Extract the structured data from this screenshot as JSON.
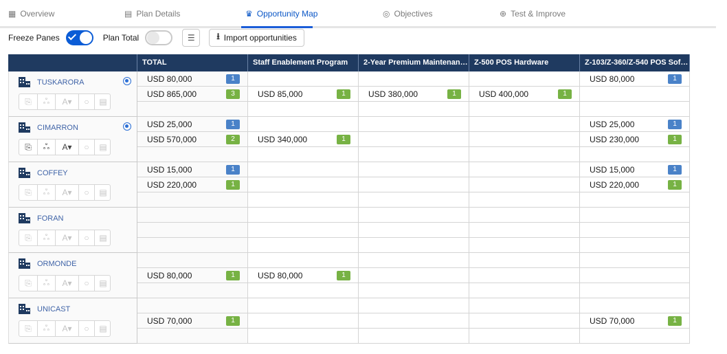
{
  "tabs": [
    {
      "label": "Overview",
      "icon": "grid-icon",
      "active": false
    },
    {
      "label": "Plan Details",
      "icon": "clipboard-icon",
      "active": false
    },
    {
      "label": "Opportunity Map",
      "icon": "crown-icon",
      "active": true
    },
    {
      "label": "Objectives",
      "icon": "target-icon",
      "active": false
    },
    {
      "label": "Test & Improve",
      "icon": "refresh-icon",
      "active": false
    }
  ],
  "toolbar": {
    "freeze_panes_label": "Freeze Panes",
    "freeze_panes_on": true,
    "plan_total_label": "Plan Total",
    "plan_total_on": false,
    "import_label": "Import opportunities"
  },
  "columns": [
    "TOTAL",
    "Staff Enablement Program",
    "2-Year Premium Maintenanc...",
    "Z-500 POS Hardware",
    "Z-103/Z-360/Z-540 POS Soft..."
  ],
  "accounts": [
    {
      "name": "TUSKARORA",
      "locate": true,
      "actions_enabled": false,
      "rows": [
        [
          {
            "amt": "USD 80,000",
            "badge": "1",
            "color": "blue"
          },
          null,
          null,
          null,
          {
            "amt": "USD 80,000",
            "badge": "1",
            "color": "blue"
          }
        ],
        [
          {
            "amt": "USD 865,000",
            "badge": "3",
            "color": "green"
          },
          {
            "amt": "USD 85,000",
            "badge": "1",
            "color": "green"
          },
          {
            "amt": "USD 380,000",
            "badge": "1",
            "color": "green"
          },
          {
            "amt": "USD 400,000",
            "badge": "1",
            "color": "green"
          },
          null
        ],
        [
          null,
          null,
          null,
          null,
          null
        ]
      ]
    },
    {
      "name": "CIMARRON",
      "locate": true,
      "actions_enabled": true,
      "rows": [
        [
          {
            "amt": "USD 25,000",
            "badge": "1",
            "color": "blue"
          },
          null,
          null,
          null,
          {
            "amt": "USD 25,000",
            "badge": "1",
            "color": "blue"
          }
        ],
        [
          {
            "amt": "USD 570,000",
            "badge": "2",
            "color": "green"
          },
          {
            "amt": "USD 340,000",
            "badge": "1",
            "color": "green"
          },
          null,
          null,
          {
            "amt": "USD 230,000",
            "badge": "1",
            "color": "green"
          }
        ],
        [
          null,
          null,
          null,
          null,
          null
        ]
      ]
    },
    {
      "name": "COFFEY",
      "locate": false,
      "actions_enabled": false,
      "rows": [
        [
          {
            "amt": "USD 15,000",
            "badge": "1",
            "color": "blue"
          },
          null,
          null,
          null,
          {
            "amt": "USD 15,000",
            "badge": "1",
            "color": "blue"
          }
        ],
        [
          {
            "amt": "USD 220,000",
            "badge": "1",
            "color": "green"
          },
          null,
          null,
          null,
          {
            "amt": "USD 220,000",
            "badge": "1",
            "color": "green"
          }
        ],
        [
          null,
          null,
          null,
          null,
          null
        ]
      ]
    },
    {
      "name": "FORAN",
      "locate": false,
      "actions_enabled": false,
      "rows": [
        [
          null,
          null,
          null,
          null,
          null
        ],
        [
          null,
          null,
          null,
          null,
          null
        ],
        [
          null,
          null,
          null,
          null,
          null
        ]
      ]
    },
    {
      "name": "ORMONDE",
      "locate": false,
      "actions_enabled": false,
      "rows": [
        [
          null,
          null,
          null,
          null,
          null
        ],
        [
          {
            "amt": "USD 80,000",
            "badge": "1",
            "color": "green"
          },
          {
            "amt": "USD 80,000",
            "badge": "1",
            "color": "green"
          },
          null,
          null,
          null
        ],
        [
          null,
          null,
          null,
          null,
          null
        ]
      ]
    },
    {
      "name": "UNICAST",
      "locate": false,
      "actions_enabled": false,
      "rows": [
        [
          null,
          null,
          null,
          null,
          null
        ],
        [
          {
            "amt": "USD 70,000",
            "badge": "1",
            "color": "green"
          },
          null,
          null,
          null,
          {
            "amt": "USD 70,000",
            "badge": "1",
            "color": "green"
          }
        ],
        [
          null,
          null,
          null,
          null,
          null
        ]
      ]
    }
  ],
  "action_icons": [
    "report-icon",
    "hierarchy-icon",
    "font-size-icon",
    "circle-icon",
    "clipboard-icon"
  ],
  "action_glyphs": [
    "⎘",
    "ஃ",
    "A▾",
    "○",
    "▤"
  ],
  "colors": {
    "header": "#1f3a60",
    "accent": "#0b5cd6",
    "badge_blue": "#4a82c8",
    "badge_green": "#77b244"
  }
}
